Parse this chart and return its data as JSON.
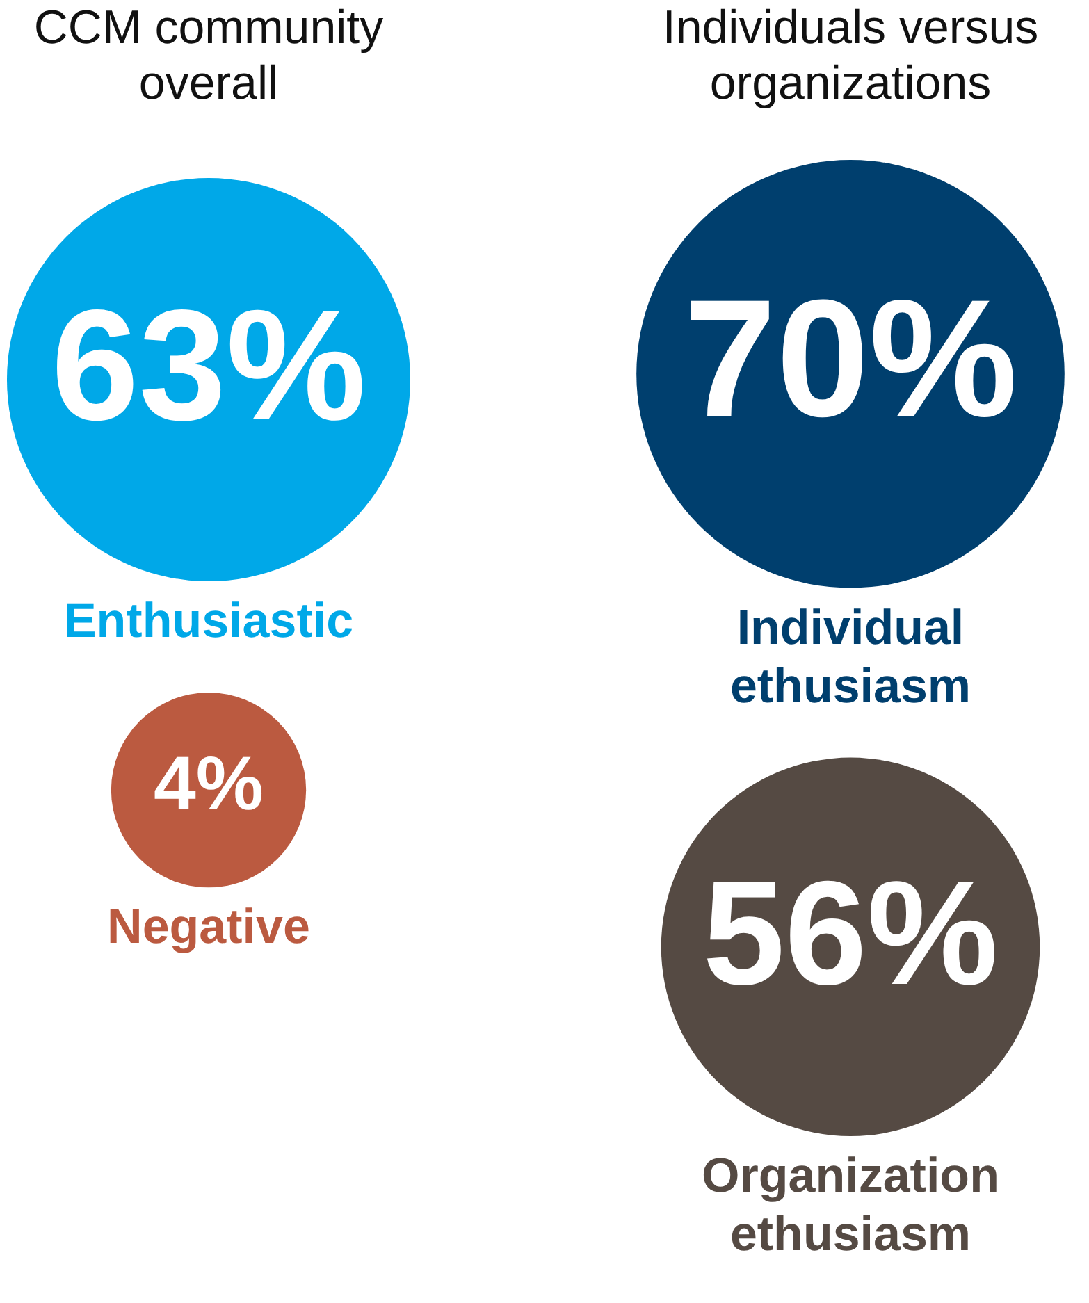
{
  "chart_data": [
    {
      "type": "other",
      "title": "CCM community overall",
      "categories": [
        "Enthusiastic",
        "Negative"
      ],
      "values": [
        63,
        4
      ],
      "value_labels": [
        "63%",
        "4%"
      ],
      "colors": [
        "#00a8e8",
        "#bb5a40"
      ]
    },
    {
      "type": "other",
      "title": "Individuals versus organizations",
      "categories": [
        "Individual ethusiasm",
        "Organization ethusiasm"
      ],
      "values": [
        70,
        56
      ],
      "value_labels": [
        "70%",
        "56%"
      ],
      "colors": [
        "#003f6e",
        "#554a43"
      ]
    }
  ]
}
